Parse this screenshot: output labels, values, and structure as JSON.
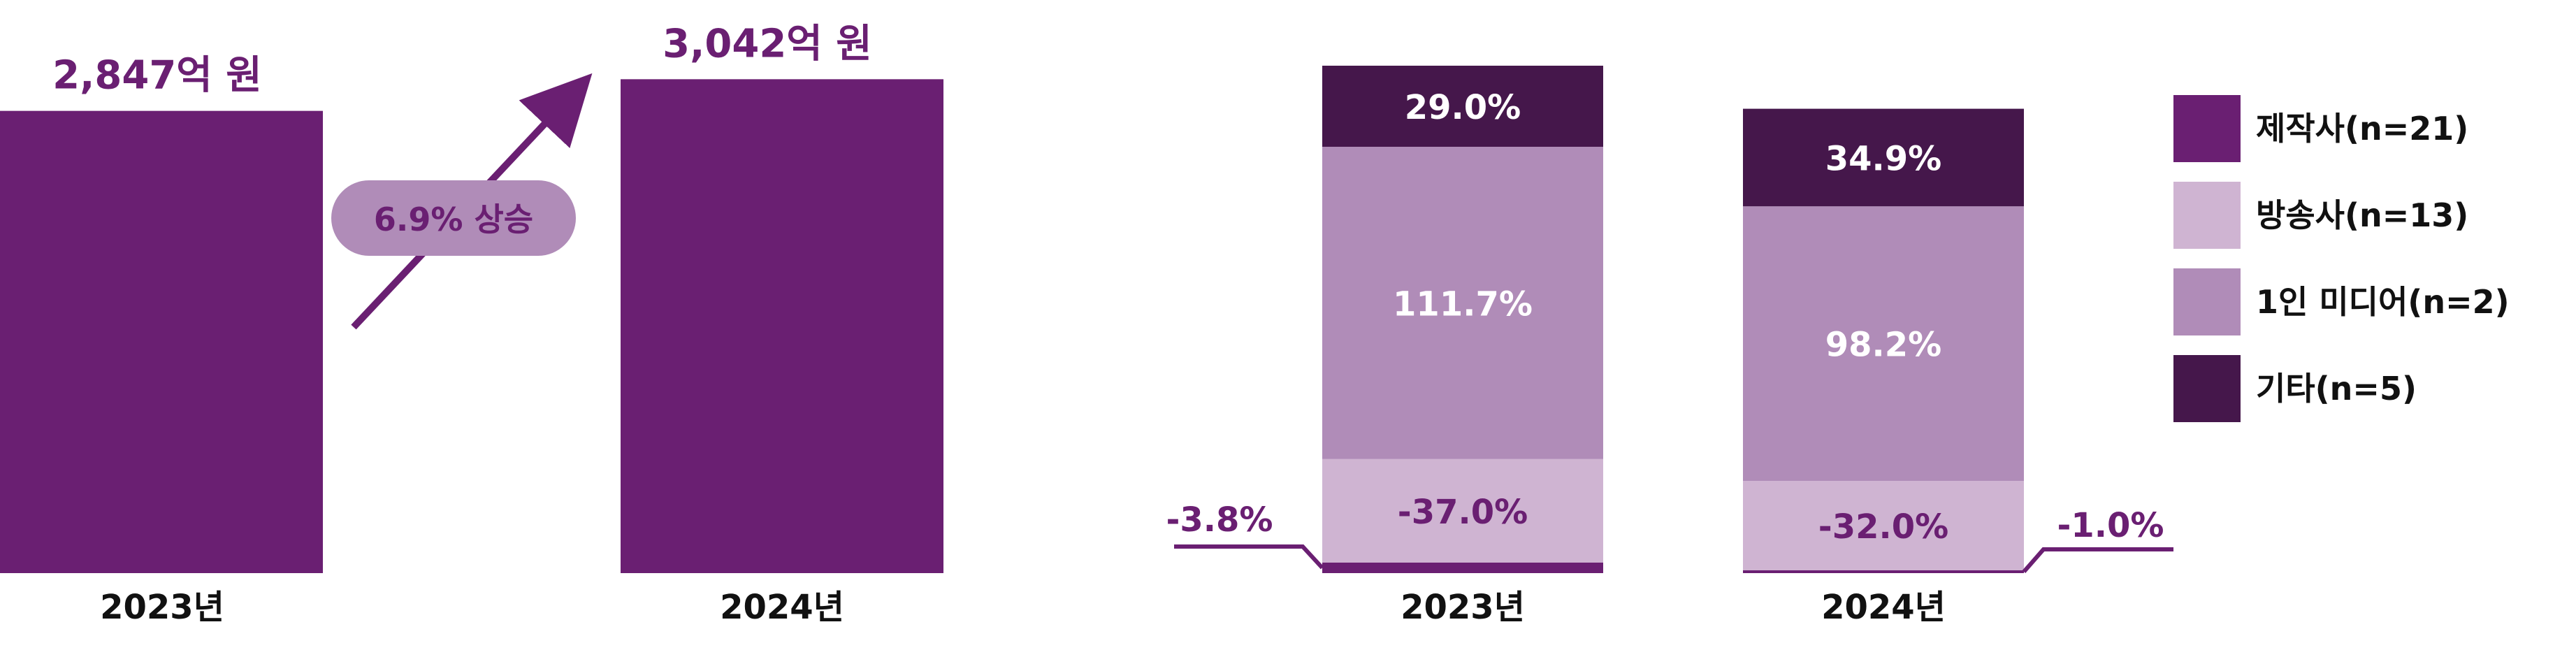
{
  "colors": {
    "producer": "#6a1f72",
    "broadcaster": "#cfb4d2",
    "one_person_media": "#b08cb8",
    "other": "#45174b",
    "label_purple": "#6a1f72",
    "pill_bg": "#b08cb8",
    "text_dark": "#111111",
    "white": "#ffffff"
  },
  "chart_data": [
    {
      "type": "bar",
      "categories": [
        "2023년",
        "2024년"
      ],
      "values": [
        2847,
        3042
      ],
      "value_labels": [
        "2,847억 원",
        "3,042억 원"
      ],
      "growth_label": "6.9% 상승"
    },
    {
      "type": "bar",
      "stacked": true,
      "categories": [
        "2023년",
        "2024년"
      ],
      "series": [
        {
          "name": "제작사(n=21)",
          "values": [
            -3.8,
            -1.0
          ],
          "labels": [
            "-3.8%",
            "-1.0%"
          ]
        },
        {
          "name": "방송사(n=13)",
          "values": [
            -37.0,
            -32.0
          ],
          "labels": [
            "-37.0%",
            "-32.0%"
          ]
        },
        {
          "name": "1인 미디어(n=2)",
          "values": [
            111.7,
            98.2
          ],
          "labels": [
            "111.7%",
            "98.2%"
          ]
        },
        {
          "name": "기타(n=5)",
          "values": [
            29.0,
            34.9
          ],
          "labels": [
            "29.0%",
            "34.9%"
          ]
        }
      ],
      "legend_position": "right"
    }
  ]
}
